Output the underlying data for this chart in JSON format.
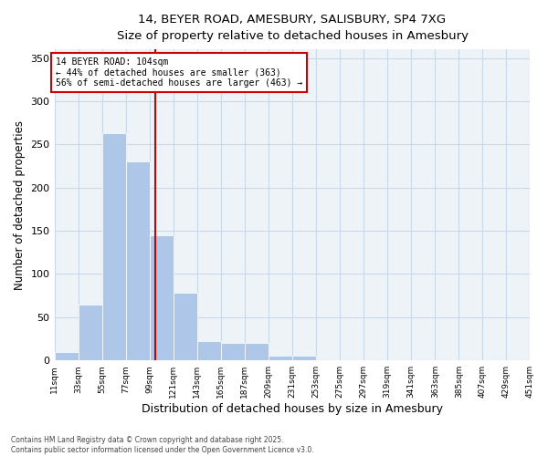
{
  "title_line1": "14, BEYER ROAD, AMESBURY, SALISBURY, SP4 7XG",
  "title_line2": "Size of property relative to detached houses in Amesbury",
  "xlabel": "Distribution of detached houses by size in Amesbury",
  "ylabel": "Number of detached properties",
  "bar_edges": [
    11,
    33,
    55,
    77,
    99,
    121,
    143,
    165,
    187,
    209,
    231,
    253,
    275,
    297,
    319,
    341,
    363,
    385,
    407,
    429,
    451
  ],
  "bar_values": [
    10,
    65,
    263,
    230,
    145,
    78,
    22,
    20,
    20,
    5,
    5,
    0,
    0,
    0,
    0,
    0,
    0,
    0,
    0,
    0
  ],
  "bar_color": "#aec6e8",
  "bar_edgecolor": "white",
  "grid_color": "#c8d8e8",
  "bg_color": "#eef3f8",
  "vline_x": 104,
  "vline_color": "#cc0000",
  "annotation_text": "14 BEYER ROAD: 104sqm\n← 44% of detached houses are smaller (363)\n56% of semi-detached houses are larger (463) →",
  "annotation_box_color": "#cc0000",
  "ylim": [
    0,
    360
  ],
  "yticks": [
    0,
    50,
    100,
    150,
    200,
    250,
    300,
    350
  ],
  "footnote": "Contains HM Land Registry data © Crown copyright and database right 2025.\nContains public sector information licensed under the Open Government Licence v3.0.",
  "tick_labels": [
    "11sqm",
    "33sqm",
    "55sqm",
    "77sqm",
    "99sqm",
    "121sqm",
    "143sqm",
    "165sqm",
    "187sqm",
    "209sqm",
    "231sqm",
    "253sqm",
    "275sqm",
    "297sqm",
    "319sqm",
    "341sqm",
    "363sqm",
    "385sqm",
    "407sqm",
    "429sqm",
    "451sqm"
  ]
}
